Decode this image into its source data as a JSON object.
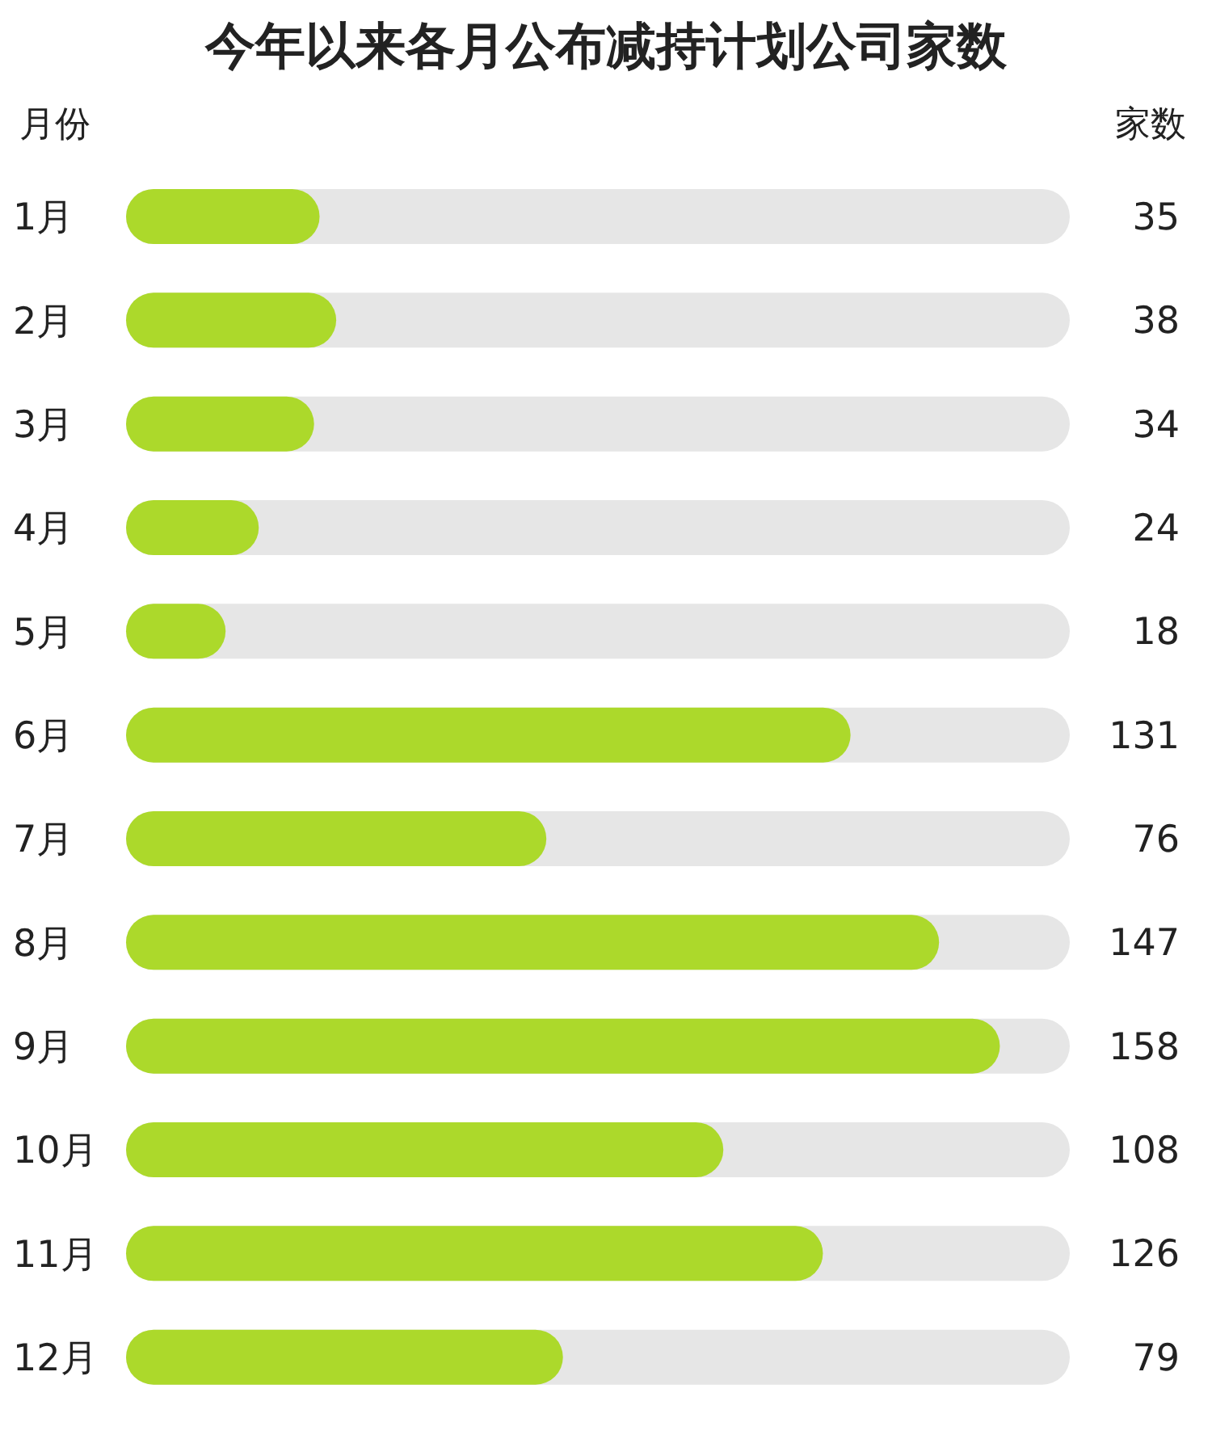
{
  "chart_data": {
    "type": "bar",
    "orientation": "horizontal",
    "title": "今年以来各月公布减持计划公司家数",
    "ylabel": "月份",
    "xlabel": "家数",
    "categories": [
      "1月",
      "2月",
      "3月",
      "4月",
      "5月",
      "6月",
      "7月",
      "8月",
      "9月",
      "10月",
      "11月",
      "12月"
    ],
    "values": [
      35,
      38,
      34,
      24,
      18,
      131,
      76,
      147,
      158,
      108,
      126,
      79
    ],
    "color": "#acd92b",
    "data_labels": true,
    "grid": false,
    "legend": false
  }
}
